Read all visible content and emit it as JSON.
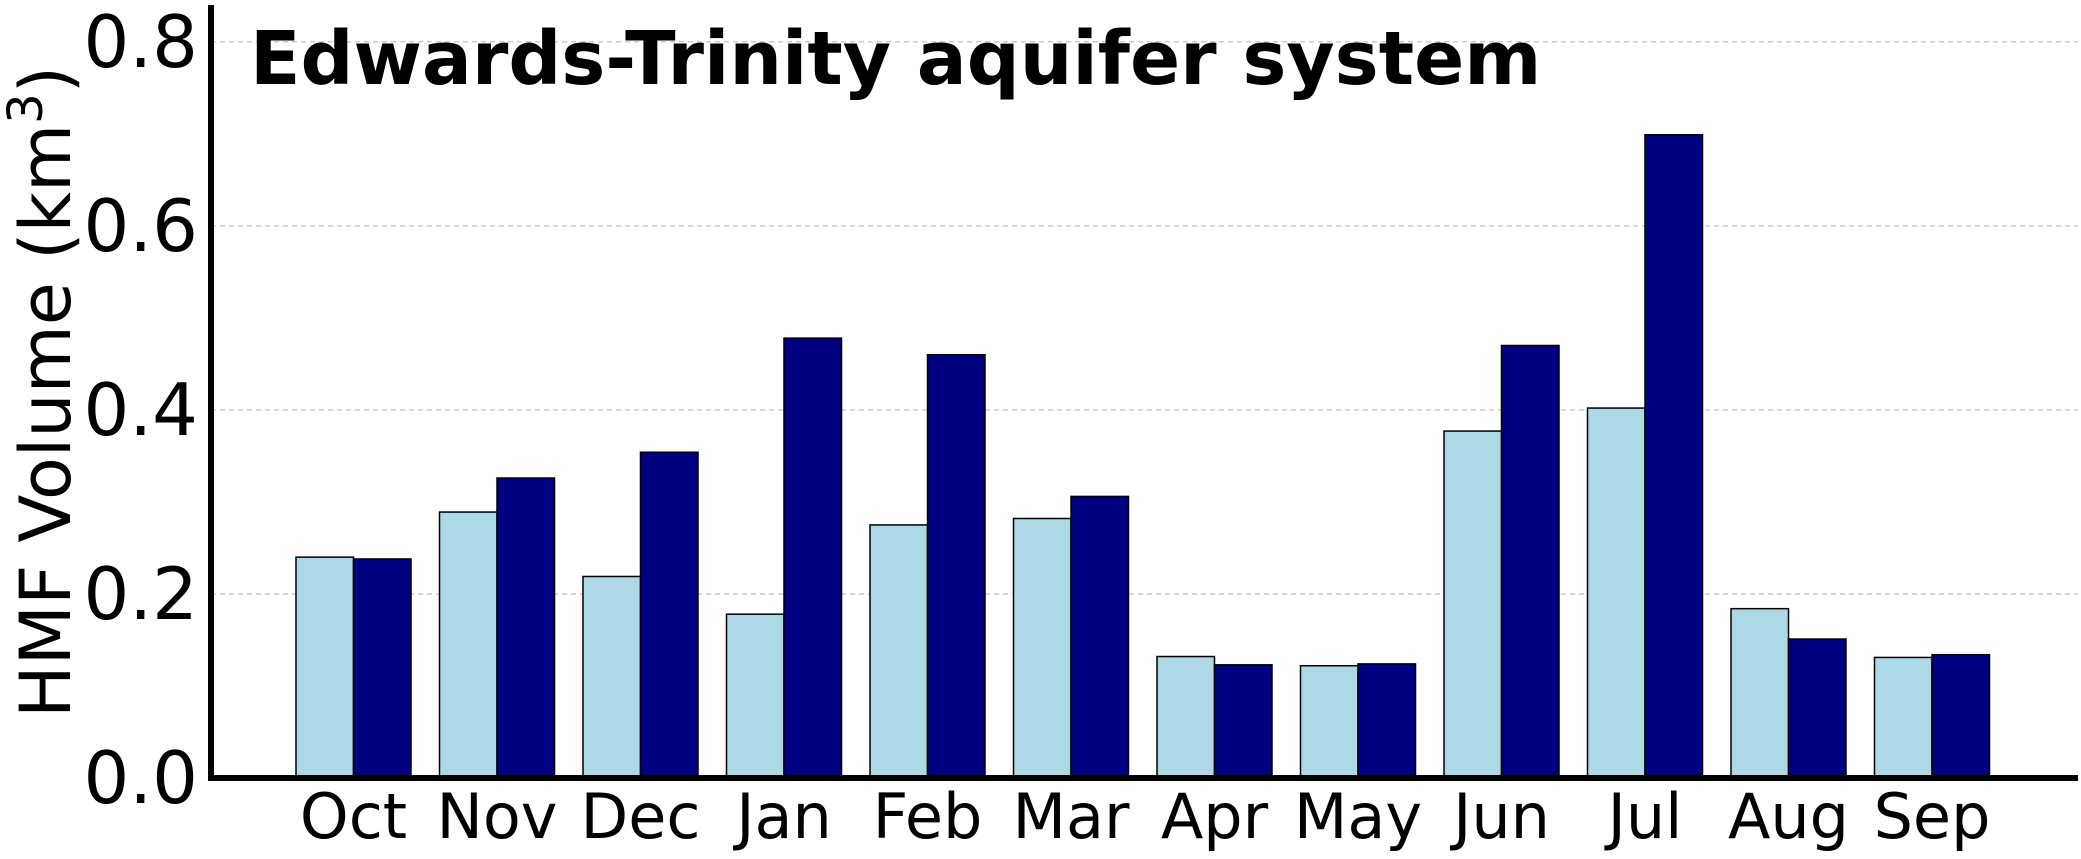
{
  "chart_data": {
    "type": "bar",
    "title": "Edwards-Trinity aquifer system",
    "ylabel": "HMF Volume (km",
    "ylabel_sup": "3",
    "ylabel_close": ")",
    "xlabel": "",
    "categories": [
      "Oct",
      "Nov",
      "Dec",
      "Jan",
      "Feb",
      "Mar",
      "Apr",
      "May",
      "Jun",
      "Jul",
      "Aug",
      "Sep"
    ],
    "series": [
      {
        "color": "#add8e6",
        "values": [
          0.24,
          0.289,
          0.219,
          0.178,
          0.275,
          0.282,
          0.132,
          0.122,
          0.377,
          0.402,
          0.184,
          0.131
        ]
      },
      {
        "color": "#000080",
        "values": [
          0.238,
          0.326,
          0.354,
          0.478,
          0.46,
          0.306,
          0.123,
          0.124,
          0.47,
          0.699,
          0.151,
          0.134
        ]
      }
    ],
    "ylim": [
      0,
      0.84
    ],
    "yticks": [
      "0.0",
      "0.2",
      "0.4",
      "0.6",
      "0.8"
    ],
    "ytick_values": [
      0.0,
      0.2,
      0.4,
      0.6,
      0.8
    ],
    "grid": "horizontal dashed"
  }
}
